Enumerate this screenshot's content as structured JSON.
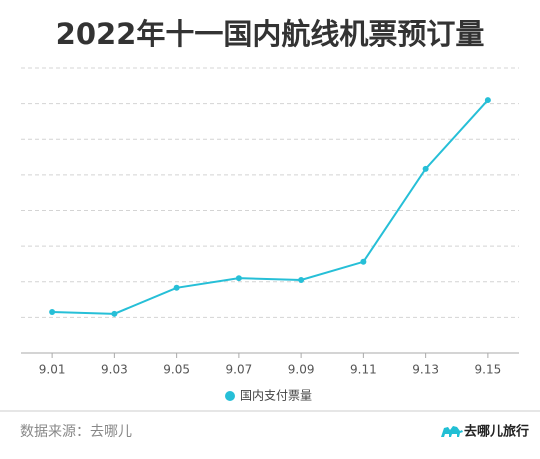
{
  "chart_data": {
    "type": "line",
    "title": "2022年十一国内航线机票预订量",
    "categories": [
      "9.01",
      "9.03",
      "9.05",
      "9.07",
      "9.09",
      "9.11",
      "9.13",
      "9.15"
    ],
    "series": [
      {
        "name": "国内支付票量",
        "color": "#26bfd7",
        "values": [
          1.15,
          1.1,
          1.83,
          2.1,
          2.05,
          2.56,
          5.17,
          7.1
        ]
      }
    ],
    "ylim": [
      0,
      8
    ],
    "grid": true
  },
  "footer": {
    "source": "数据来源：去哪儿",
    "logo": "去哪儿旅行"
  }
}
